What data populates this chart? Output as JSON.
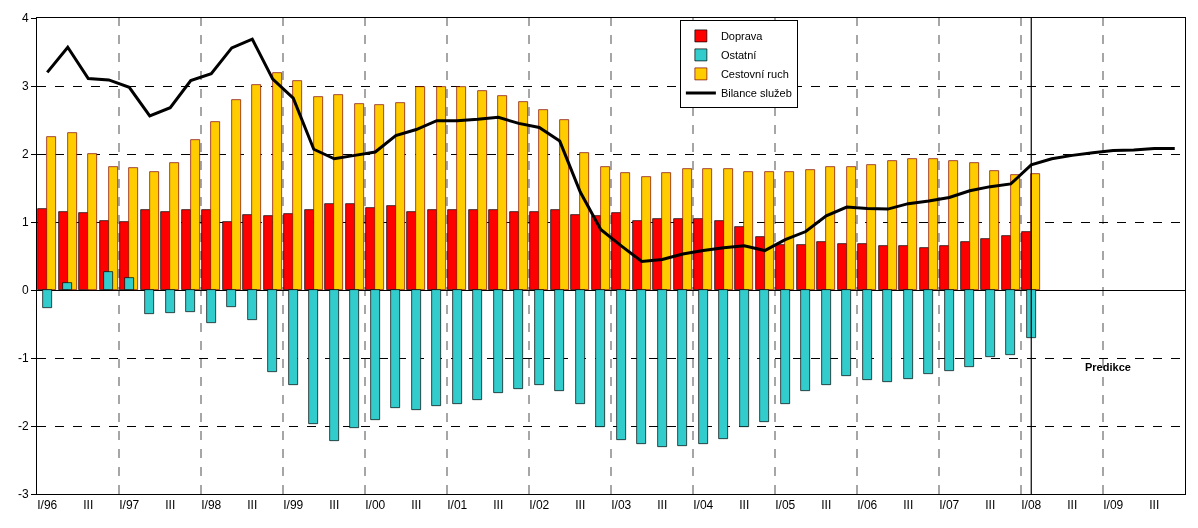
{
  "chart_data": {
    "type": "bar",
    "categories": [
      "I/96",
      null,
      "III",
      null,
      "I/97",
      null,
      "III",
      null,
      "I/98",
      null,
      "III",
      null,
      "I/99",
      null,
      "III",
      null,
      "I/00",
      null,
      "III",
      null,
      "I/01",
      null,
      "III",
      null,
      "I/02",
      null,
      "III",
      null,
      "I/03",
      null,
      "III",
      null,
      "I/04",
      null,
      "III",
      null,
      "I/05",
      null,
      "III",
      null,
      "I/06",
      null,
      "III",
      null,
      "I/07",
      null,
      "III",
      null,
      "I/08",
      null,
      "III",
      null,
      "I/09",
      null,
      "III",
      null
    ],
    "ylim": [
      -3,
      4
    ],
    "yticks": [
      -3,
      -2,
      -1,
      0,
      1,
      2,
      3,
      4
    ],
    "grid": true,
    "legend": "top right",
    "series": [
      {
        "name": "Doprava",
        "color": "#ff0000",
        "values": [
          1.19,
          1.15,
          1.13,
          1.02,
          1.0,
          1.17,
          1.15,
          1.18,
          1.17,
          1.0,
          1.11,
          1.09,
          1.12,
          1.17,
          1.27,
          1.26,
          1.21,
          1.24,
          1.14,
          1.18,
          1.18,
          1.18,
          1.18,
          1.14,
          1.14,
          1.18,
          1.11,
          1.09,
          1.13,
          1.02,
          1.04,
          1.04,
          1.05,
          1.02,
          0.92,
          0.78,
          0.66,
          0.66,
          0.7,
          0.68,
          0.68,
          0.65,
          0.64,
          0.62,
          0.65,
          0.71,
          0.75,
          0.8,
          0.85,
          null,
          null,
          null,
          null,
          null,
          null,
          null
        ]
      },
      {
        "name": "Ostatní",
        "color": "#33cccc",
        "values": [
          -0.27,
          0.1,
          null,
          0.27,
          0.18,
          -0.36,
          -0.34,
          -0.33,
          -0.49,
          -0.25,
          -0.44,
          -1.2,
          -1.39,
          -1.97,
          -2.22,
          -2.03,
          -1.91,
          -1.73,
          -1.76,
          -1.7,
          -1.68,
          -1.62,
          -1.51,
          -1.45,
          -1.39,
          -1.49,
          -1.67,
          -2.02,
          -2.21,
          -2.26,
          -2.31,
          -2.3,
          -2.27,
          -2.19,
          -2.01,
          -1.94,
          -1.68,
          -1.49,
          -1.39,
          -1.27,
          -1.32,
          -1.36,
          -1.31,
          -1.24,
          -1.19,
          -1.13,
          -0.99,
          -0.95,
          -0.71,
          null,
          null,
          null,
          null,
          null,
          null,
          null
        ]
      },
      {
        "name": "Cestovní ruch",
        "color": "#ffcc00",
        "values": [
          2.25,
          2.31,
          2.0,
          1.81,
          1.79,
          1.73,
          1.87,
          2.21,
          2.47,
          2.8,
          3.01,
          3.19,
          3.08,
          2.84,
          2.87,
          2.74,
          2.72,
          2.75,
          2.98,
          2.99,
          2.98,
          2.93,
          2.86,
          2.77,
          2.65,
          2.5,
          2.01,
          1.81,
          1.72,
          1.66,
          1.72,
          1.78,
          1.78,
          1.78,
          1.73,
          1.73,
          1.73,
          1.76,
          1.81,
          1.81,
          1.84,
          1.9,
          1.93,
          1.93,
          1.9,
          1.87,
          1.75,
          1.69,
          1.7,
          null,
          null,
          null,
          null,
          null,
          null,
          null
        ]
      },
      {
        "name": "Bilance služeb",
        "type": "line",
        "color": "#000000",
        "values": [
          3.2,
          3.57,
          3.11,
          3.09,
          2.98,
          2.56,
          2.68,
          3.08,
          3.18,
          3.56,
          3.69,
          3.1,
          2.82,
          2.07,
          1.93,
          1.98,
          2.03,
          2.27,
          2.36,
          2.49,
          2.49,
          2.51,
          2.54,
          2.45,
          2.39,
          2.19,
          1.44,
          0.89,
          0.65,
          0.42,
          0.45,
          0.53,
          0.58,
          0.62,
          0.65,
          0.58,
          0.74,
          0.86,
          1.09,
          1.22,
          1.2,
          1.19,
          1.27,
          1.31,
          1.36,
          1.46,
          1.52,
          1.56,
          1.84,
          1.93,
          1.98,
          2.02,
          2.05,
          2.06,
          2.08,
          2.08
        ]
      }
    ],
    "ref_lines": [
      {
        "axis": "x",
        "value": "I/08",
        "color": "#000000",
        "line_style": "solid"
      }
    ],
    "annotations": [
      "Predikce"
    ]
  }
}
